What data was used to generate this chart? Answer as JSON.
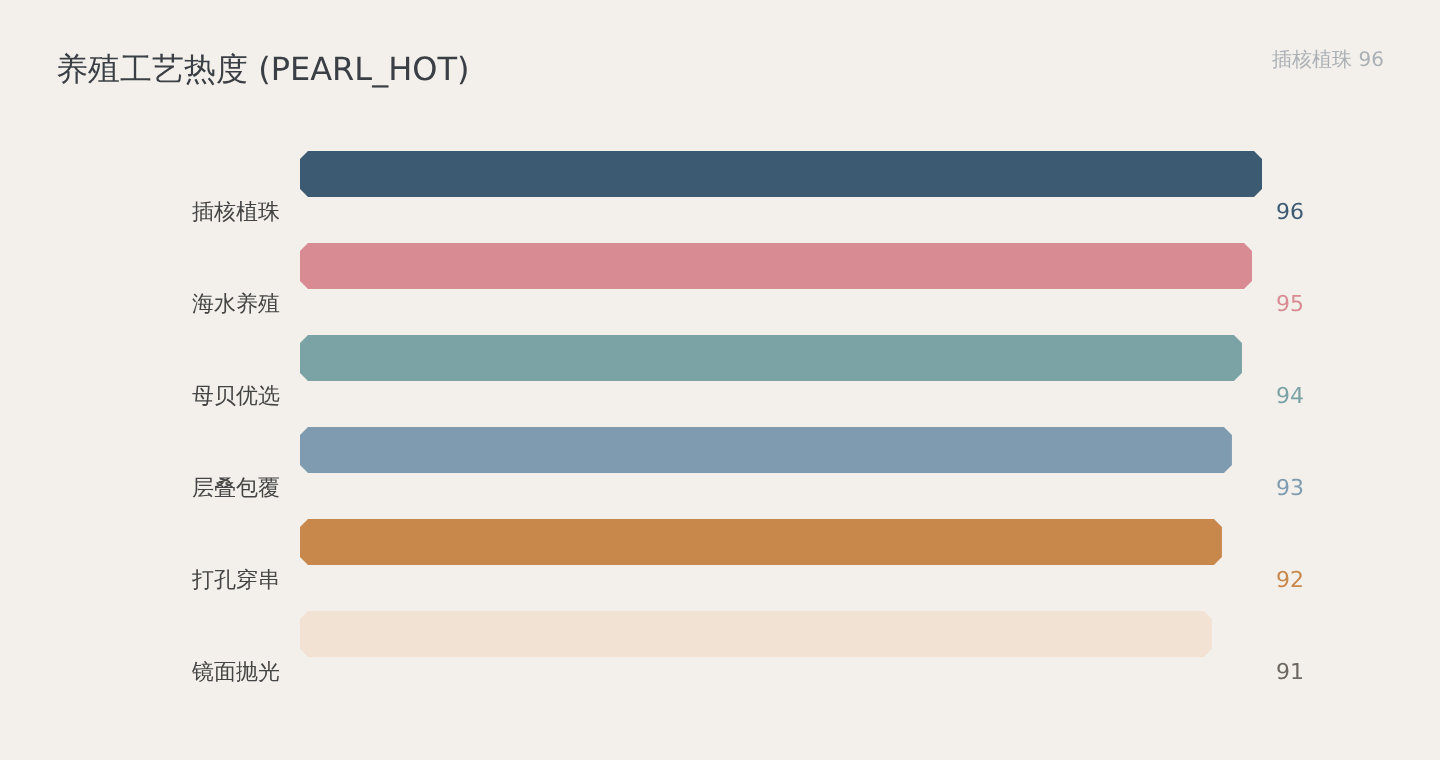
{
  "chart_data": {
    "type": "bar",
    "orientation": "horizontal",
    "title": "养殖工艺热度 (PEARL_HOT)",
    "annotations": [
      "插核植珠 96"
    ],
    "categories": [
      "插核植珠",
      "海水养殖",
      "母贝优选",
      "层叠包覆",
      "打孔穿串",
      "镜面抛光"
    ],
    "values": [
      96,
      95,
      94,
      93,
      92,
      91
    ],
    "colors": [
      "#3d5a73",
      "#d98b94",
      "#7ba3a6",
      "#7f9bb0",
      "#c8884b",
      "#f2e2d4"
    ],
    "data_labels": true
  }
}
